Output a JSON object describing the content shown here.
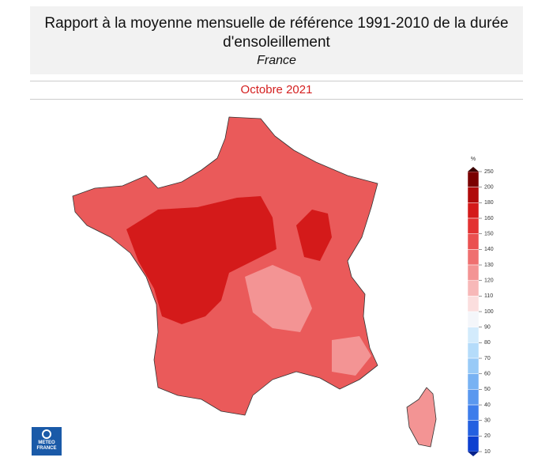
{
  "header": {
    "title": "Rapport à la moyenne mensuelle de référence 1991-2010 de la durée d'ensoleillement",
    "region": "France"
  },
  "period": "Octobre 2021",
  "legend": {
    "unit": "%",
    "ticks": [
      250,
      200,
      180,
      160,
      150,
      140,
      130,
      120,
      110,
      100,
      90,
      80,
      70,
      60,
      50,
      40,
      30,
      20,
      10
    ],
    "colors": [
      "#7a0000",
      "#b00a0a",
      "#d41a1a",
      "#e33232",
      "#ea5050",
      "#ef7070",
      "#f39494",
      "#f7b8b8",
      "#fbdede",
      "#f4f6fa",
      "#d3ebfc",
      "#b5dcfa",
      "#98caf7",
      "#78b2f3",
      "#5a98ef",
      "#3d7deb",
      "#2460e0",
      "#0c3fd0"
    ]
  },
  "logo": {
    "text": "METEO FRANCE"
  }
}
